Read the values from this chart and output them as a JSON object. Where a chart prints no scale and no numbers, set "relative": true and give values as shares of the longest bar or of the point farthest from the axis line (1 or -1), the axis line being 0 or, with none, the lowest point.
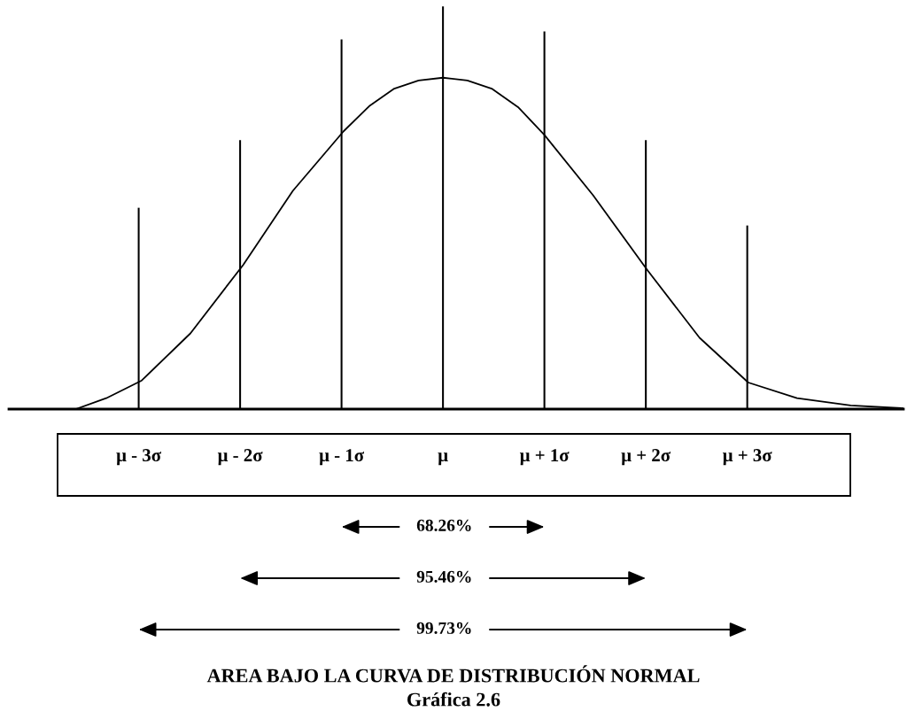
{
  "chart_data": {
    "type": "line",
    "relative": true,
    "title": "AREA BAJO LA CURVA DE DISTRIBUCIÓN NORMAL",
    "subtitle": "Gráfica 2.6",
    "xlim": [
      -4.28,
      4.54
    ],
    "xticks": [
      {
        "value": -3,
        "label": "μ - 3σ"
      },
      {
        "value": -2,
        "label": "μ - 2σ"
      },
      {
        "value": -1,
        "label": "μ - 1σ"
      },
      {
        "value": 0,
        "label": "μ"
      },
      {
        "value": 1,
        "label": "μ + 1σ"
      },
      {
        "value": 2,
        "label": "μ + 2σ"
      },
      {
        "value": 3,
        "label": "μ + 3σ"
      }
    ],
    "series": [
      {
        "type": "bar",
        "color": "#000000",
        "x": [
          -3,
          -2,
          -1,
          0,
          1,
          2,
          3
        ],
        "values": [
          0.5,
          0.668,
          0.918,
          1,
          0.938,
          0.668,
          0.456
        ]
      },
      {
        "color": "#000000",
        "x": [
          -4.28,
          -3.62,
          -3.32,
          -2.97,
          -2.49,
          -1.97,
          -1.48,
          -0.98,
          -0.72,
          -0.48,
          -0.24,
          0,
          0.24,
          0.48,
          0.74,
          1.0,
          1.48,
          2.01,
          2.53,
          3.01,
          3.49,
          4.02,
          4.54
        ],
        "values": [
          0,
          0,
          0.027,
          0.071,
          0.188,
          0.358,
          0.542,
          0.69,
          0.754,
          0.796,
          0.816,
          0.823,
          0.816,
          0.796,
          0.75,
          0.681,
          0.531,
          0.347,
          0.177,
          0.066,
          0.027,
          0.009,
          0.002
        ]
      }
    ],
    "annotations": [
      "68.26%",
      "95.46%",
      "99.73%"
    ],
    "grid": false,
    "legend": false,
    "marker": "none",
    "line_style": "solid"
  }
}
